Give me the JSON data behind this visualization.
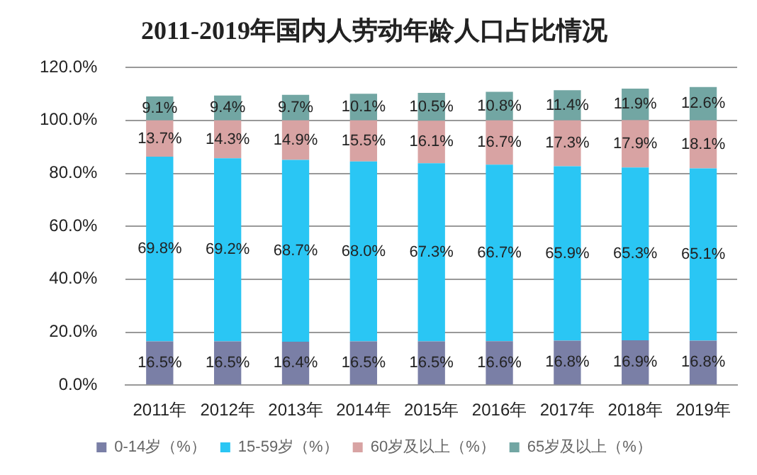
{
  "chart_data": {
    "type": "bar",
    "title": "2011-2019年国内人劳动年龄人口占比情况",
    "categories": [
      "2011年",
      "2012年",
      "2013年",
      "2014年",
      "2015年",
      "2016年",
      "2017年",
      "2018年",
      "2019年"
    ],
    "stacked": true,
    "series": [
      {
        "name": "0-14岁（%）",
        "color": "#7a7fa6",
        "values": [
          16.5,
          16.5,
          16.4,
          16.5,
          16.5,
          16.6,
          16.8,
          16.9,
          16.8
        ],
        "value_labels": [
          "16.5%",
          "16.5%",
          "16.4%",
          "16.5%",
          "16.5%",
          "16.6%",
          "16.8%",
          "16.9%",
          "16.8%"
        ]
      },
      {
        "name": "15-59岁（%）",
        "color": "#2ac6f4",
        "values": [
          69.8,
          69.2,
          68.7,
          68.0,
          67.3,
          66.7,
          65.9,
          65.3,
          65.1
        ],
        "value_labels": [
          "69.8%",
          "69.2%",
          "68.7%",
          "68.0%",
          "67.3%",
          "66.7%",
          "65.9%",
          "65.3%",
          "65.1%"
        ]
      },
      {
        "name": "60岁及以上（%）",
        "color": "#d8a3a3",
        "values": [
          13.7,
          14.3,
          14.9,
          15.5,
          16.1,
          16.7,
          17.3,
          17.9,
          18.1
        ],
        "value_labels": [
          "13.7%",
          "14.3%",
          "14.9%",
          "15.5%",
          "16.1%",
          "16.7%",
          "17.3%",
          "17.9%",
          "18.1%"
        ]
      },
      {
        "name": "65岁及以上（%）",
        "color": "#72a6a3",
        "values": [
          9.1,
          9.4,
          9.7,
          10.1,
          10.5,
          10.8,
          11.4,
          11.9,
          12.6
        ],
        "value_labels": [
          "9.1%",
          "9.4%",
          "9.7%",
          "10.1%",
          "10.5%",
          "10.8%",
          "11.4%",
          "11.9%",
          "12.6%"
        ]
      }
    ],
    "ylim": [
      0,
      120
    ],
    "yticks": [
      {
        "value": 0,
        "label": "0.0%"
      },
      {
        "value": 20,
        "label": "20.0%"
      },
      {
        "value": 40,
        "label": "40.0%"
      },
      {
        "value": 60,
        "label": "60.0%"
      },
      {
        "value": 80,
        "label": "80.0%"
      },
      {
        "value": 100,
        "label": "100.0%"
      },
      {
        "value": 120,
        "label": "120.0%"
      }
    ],
    "grid": "y",
    "legend": "bottom"
  }
}
